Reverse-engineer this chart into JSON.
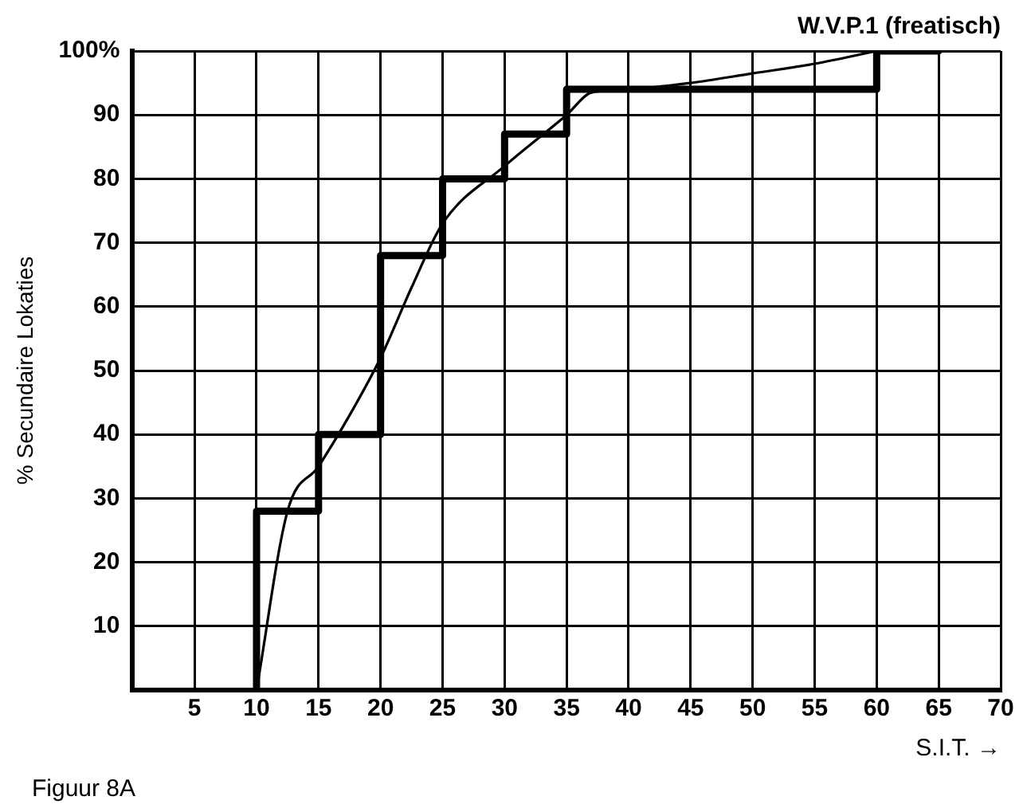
{
  "chart_data": {
    "type": "line",
    "title": "W.V.P.1 (freatisch)",
    "xlabel": "S.I.T. →",
    "ylabel": "% Secundaire Lokaties",
    "annotations": [
      "Figuur 8A"
    ],
    "xlim": [
      0,
      70
    ],
    "xticks": [
      5,
      10,
      15,
      20,
      25,
      30,
      35,
      40,
      45,
      50,
      55,
      60,
      65,
      70
    ],
    "ylim": [
      0,
      100
    ],
    "yticks": [
      {
        "value": 0,
        "label": null
      },
      10,
      20,
      30,
      40,
      50,
      60,
      70,
      80,
      90,
      {
        "value": 100,
        "label": "100%"
      }
    ],
    "grid": true,
    "legend": false,
    "marker": "none",
    "series": [
      {
        "type": "step",
        "color": "#000000",
        "x": [
          10,
          10,
          15,
          20,
          25,
          30,
          35,
          60,
          65
        ],
        "values": [
          0,
          28,
          40,
          68,
          80,
          87,
          94,
          100,
          100
        ]
      },
      {
        "type": "line",
        "color": "#000000",
        "x": [
          10,
          12.5,
          15,
          17.5,
          20,
          22.5,
          25,
          30,
          35,
          37,
          40,
          45,
          50,
          55,
          60
        ],
        "values": [
          0,
          28,
          35,
          43,
          52,
          63,
          73,
          82,
          90,
          93.5,
          94,
          95,
          96.5,
          98,
          100
        ]
      }
    ]
  }
}
